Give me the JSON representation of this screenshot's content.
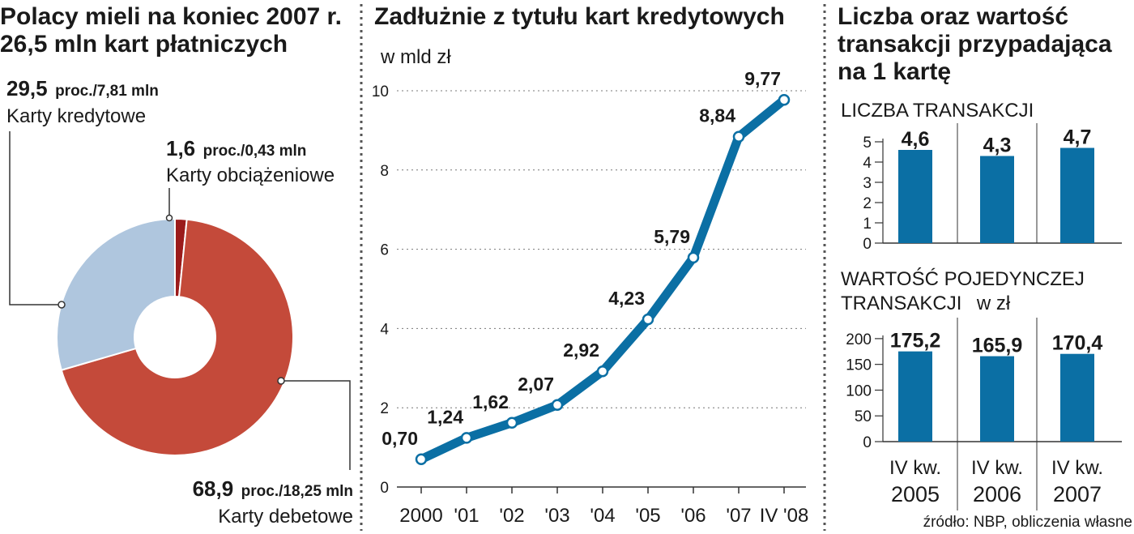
{
  "panel_titles": {
    "left": [
      "Polacy mieli na koniec 2007 r.",
      "26,5 mln kart płatniczych"
    ],
    "middle": [
      "Zadłużnie z tytułu kart kredytowych"
    ],
    "right": [
      "Liczba oraz wartość",
      "transakcji przypadająca",
      "na 1 kartę"
    ]
  },
  "source": "źródło: NBP, obliczenia własne",
  "colors": {
    "debit": "#c44a3a",
    "credit": "#afc6de",
    "charge": "#9b1b1b",
    "line": "#0b6fa4",
    "bar": "#0b6fa4",
    "grid": "#777777"
  },
  "chart_data": [
    {
      "type": "pie",
      "donut": true,
      "slices": [
        {
          "name": "Karty kredytowe",
          "value_label": "29,5",
          "unit_label": "proc./7,81 mln",
          "percent": 29.5,
          "count_mln": 7.81,
          "color": "#afc6de"
        },
        {
          "name": "Karty obciążeniowe",
          "value_label": "1,6",
          "unit_label": "proc./0,43 mln",
          "percent": 1.6,
          "count_mln": 0.43,
          "color": "#9b1b1b"
        },
        {
          "name": "Karty debetowe",
          "value_label": "68,9",
          "unit_label": "proc./18,25 mln",
          "percent": 68.9,
          "count_mln": 18.25,
          "color": "#c44a3a"
        }
      ]
    },
    {
      "type": "line",
      "title": "Zadłużnie z tytułu kart kredytowych",
      "ylabel": "w mld zł",
      "x": [
        "2000",
        "'01",
        "'02",
        "'03",
        "'04",
        "'05",
        "'06",
        "'07",
        "IV '08"
      ],
      "values": [
        0.7,
        1.24,
        1.62,
        2.07,
        2.92,
        4.23,
        5.79,
        8.84,
        9.77
      ],
      "value_labels": [
        "0,70",
        "1,24",
        "1,62",
        "2,07",
        "2,92",
        "4,23",
        "5,79",
        "8,84",
        "9,77"
      ],
      "yticks": [
        0,
        2,
        4,
        6,
        8,
        10
      ],
      "ylim": [
        0,
        10
      ],
      "grid": true
    },
    {
      "type": "bar",
      "title": "LICZBA TRANSAKCJI",
      "categories": [
        "IV kw. 2005",
        "IV kw. 2006",
        "IV kw. 2007"
      ],
      "values": [
        4.6,
        4.3,
        4.7
      ],
      "value_labels": [
        "4,6",
        "4,3",
        "4,7"
      ],
      "yticks": [
        0,
        1,
        2,
        3,
        4,
        5
      ],
      "ylim": [
        0,
        5.6
      ]
    },
    {
      "type": "bar",
      "title": "WARTOŚĆ POJEDYNCZEJ TRANSAKCJI",
      "unit": "w zł",
      "categories": [
        "IV kw. 2005",
        "IV kw. 2006",
        "IV kw. 2007"
      ],
      "values": [
        175.2,
        165.9,
        170.4
      ],
      "value_labels": [
        "175,2",
        "165,9",
        "170,4"
      ],
      "yticks": [
        0,
        50,
        100,
        150,
        200
      ],
      "ylim": [
        0,
        225
      ]
    }
  ],
  "bar_categories_lines": [
    [
      "IV kw.",
      "2005"
    ],
    [
      "IV kw.",
      "2006"
    ],
    [
      "IV kw.",
      "2007"
    ]
  ],
  "bar2_title_lines": [
    "WARTOŚĆ POJEDYNCZEJ",
    "TRANSAKCJI"
  ]
}
